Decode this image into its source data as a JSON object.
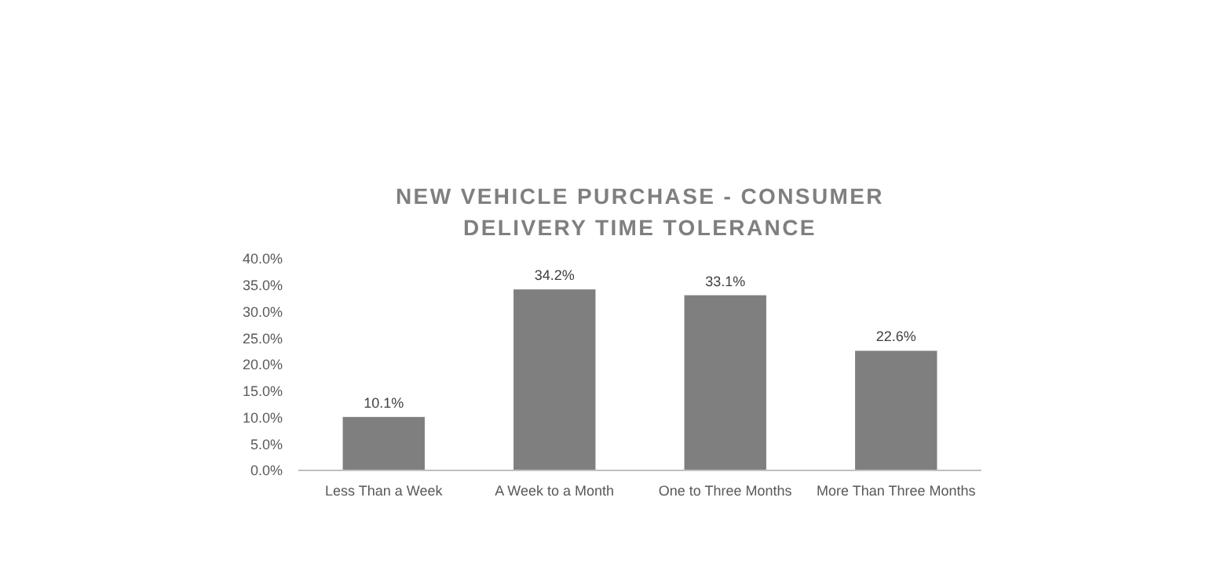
{
  "chart_data": {
    "type": "bar",
    "title": "NEW VEHICLE PURCHASE - CONSUMER\nDELIVERY TIME TOLERANCE",
    "categories": [
      "Less Than a Week",
      "A Week to a Month",
      "One to Three Months",
      "More Than Three Months"
    ],
    "values": [
      10.1,
      34.2,
      33.1,
      22.6
    ],
    "color": "#7f7f7f",
    "value_labels": [
      "10.1%",
      "34.2%",
      "33.1%",
      "22.6%"
    ],
    "ylim": [
      0,
      40
    ],
    "yticks": [
      {
        "value": 0,
        "label": "0.0%"
      },
      {
        "value": 5,
        "label": "5.0%"
      },
      {
        "value": 10,
        "label": "10.0%"
      },
      {
        "value": 15,
        "label": "15.0%"
      },
      {
        "value": 20,
        "label": "20.0%"
      },
      {
        "value": 25,
        "label": "25.0%"
      },
      {
        "value": 30,
        "label": "30.0%"
      },
      {
        "value": 35,
        "label": "35.0%"
      },
      {
        "value": 40,
        "label": "40.0%"
      }
    ],
    "grid": false
  }
}
